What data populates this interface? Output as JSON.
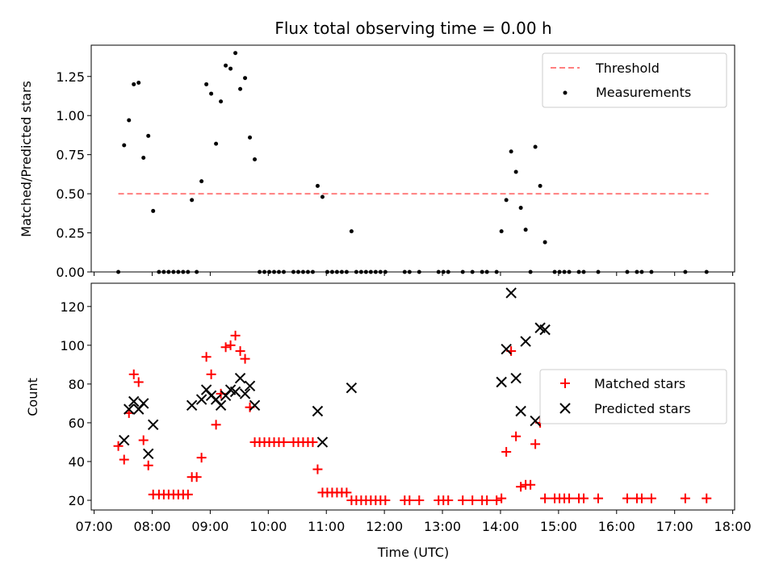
{
  "chart_data": [
    {
      "type": "scatter",
      "title": "Flux total observing time = 0.00 h",
      "xlabel": "",
      "ylabel": "Matched/Predicted stars",
      "xlim": [
        "07:00",
        "18:00"
      ],
      "ylim": [
        0,
        1.45
      ],
      "yticks": [
        0.0,
        0.25,
        0.5,
        0.75,
        1.0,
        1.25
      ],
      "ytick_labels": [
        "0.00",
        "0.25",
        "0.50",
        "0.75",
        "1.00",
        "1.25"
      ],
      "legend": {
        "position": "top-right",
        "entries": [
          "Threshold",
          "Measurements"
        ]
      },
      "threshold": {
        "name": "Threshold",
        "value": 0.5,
        "x_start": "07:25",
        "x_end": "17:35",
        "color": "#ff7f7f",
        "style": "dashed"
      },
      "series": [
        {
          "name": "Measurements",
          "color": "#000000",
          "marker": "dot",
          "points": [
            [
              "07:25",
              0.0
            ],
            [
              "07:31",
              0.81
            ],
            [
              "07:36",
              0.97
            ],
            [
              "07:41",
              1.2
            ],
            [
              "07:46",
              1.21
            ],
            [
              "07:51",
              0.73
            ],
            [
              "07:56",
              0.87
            ],
            [
              "08:01",
              0.39
            ],
            [
              "08:07",
              0.0
            ],
            [
              "08:12",
              0.0
            ],
            [
              "08:17",
              0.0
            ],
            [
              "08:22",
              0.0
            ],
            [
              "08:27",
              0.0
            ],
            [
              "08:32",
              0.0
            ],
            [
              "08:37",
              0.0
            ],
            [
              "08:41",
              0.46
            ],
            [
              "08:46",
              0.0
            ],
            [
              "08:51",
              0.58
            ],
            [
              "08:56",
              1.2
            ],
            [
              "09:01",
              1.14
            ],
            [
              "09:06",
              0.82
            ],
            [
              "09:11",
              1.09
            ],
            [
              "09:16",
              1.32
            ],
            [
              "09:21",
              1.3
            ],
            [
              "09:26",
              1.4
            ],
            [
              "09:31",
              1.17
            ],
            [
              "09:36",
              1.24
            ],
            [
              "09:41",
              0.86
            ],
            [
              "09:46",
              0.72
            ],
            [
              "09:51",
              0.0
            ],
            [
              "09:56",
              0.0
            ],
            [
              "10:01",
              0.0
            ],
            [
              "10:06",
              0.0
            ],
            [
              "10:11",
              0.0
            ],
            [
              "10:16",
              0.0
            ],
            [
              "10:26",
              0.0
            ],
            [
              "10:31",
              0.0
            ],
            [
              "10:36",
              0.0
            ],
            [
              "10:41",
              0.0
            ],
            [
              "10:46",
              0.0
            ],
            [
              "10:51",
              0.55
            ],
            [
              "10:56",
              0.48
            ],
            [
              "11:01",
              0.0
            ],
            [
              "11:06",
              0.0
            ],
            [
              "11:11",
              0.0
            ],
            [
              "11:16",
              0.0
            ],
            [
              "11:21",
              0.0
            ],
            [
              "11:26",
              0.26
            ],
            [
              "11:31",
              0.0
            ],
            [
              "11:36",
              0.0
            ],
            [
              "11:41",
              0.0
            ],
            [
              "11:46",
              0.0
            ],
            [
              "11:51",
              0.0
            ],
            [
              "11:56",
              0.0
            ],
            [
              "12:01",
              0.0
            ],
            [
              "12:21",
              0.0
            ],
            [
              "12:26",
              0.0
            ],
            [
              "12:36",
              0.0
            ],
            [
              "12:56",
              0.0
            ],
            [
              "13:01",
              0.0
            ],
            [
              "13:06",
              0.0
            ],
            [
              "13:21",
              0.0
            ],
            [
              "13:31",
              0.0
            ],
            [
              "13:41",
              0.0
            ],
            [
              "13:46",
              0.0
            ],
            [
              "13:56",
              0.0
            ],
            [
              "14:01",
              0.26
            ],
            [
              "14:06",
              0.46
            ],
            [
              "14:11",
              0.77
            ],
            [
              "14:16",
              0.64
            ],
            [
              "14:21",
              0.41
            ],
            [
              "14:26",
              0.27
            ],
            [
              "14:31",
              0.0
            ],
            [
              "14:36",
              0.8
            ],
            [
              "14:41",
              0.55
            ],
            [
              "14:46",
              0.19
            ],
            [
              "14:56",
              0.0
            ],
            [
              "15:01",
              0.0
            ],
            [
              "15:06",
              0.0
            ],
            [
              "15:11",
              0.0
            ],
            [
              "15:21",
              0.0
            ],
            [
              "15:26",
              0.0
            ],
            [
              "15:41",
              0.0
            ],
            [
              "16:11",
              0.0
            ],
            [
              "16:21",
              0.0
            ],
            [
              "16:26",
              0.0
            ],
            [
              "16:36",
              0.0
            ],
            [
              "17:11",
              0.0
            ],
            [
              "17:33",
              0.0
            ]
          ]
        }
      ]
    },
    {
      "type": "scatter",
      "title": "",
      "xlabel": "Time (UTC)",
      "ylabel": "Count",
      "xlim": [
        "07:00",
        "18:00"
      ],
      "ylim": [
        15,
        132
      ],
      "xticks": [
        "07:00",
        "08:00",
        "09:00",
        "10:00",
        "11:00",
        "12:00",
        "13:00",
        "14:00",
        "15:00",
        "16:00",
        "17:00",
        "18:00"
      ],
      "yticks": [
        20,
        40,
        60,
        80,
        100,
        120
      ],
      "legend": {
        "position": "center-right",
        "entries": [
          "Matched stars",
          "Predicted stars"
        ]
      },
      "series": [
        {
          "name": "Matched stars",
          "color": "#ff0000",
          "marker": "plus",
          "points": [
            [
              "07:25",
              48
            ],
            [
              "07:31",
              41
            ],
            [
              "07:36",
              65
            ],
            [
              "07:41",
              85
            ],
            [
              "07:46",
              81
            ],
            [
              "07:51",
              51
            ],
            [
              "07:56",
              38
            ],
            [
              "08:01",
              23
            ],
            [
              "08:07",
              23
            ],
            [
              "08:12",
              23
            ],
            [
              "08:17",
              23
            ],
            [
              "08:22",
              23
            ],
            [
              "08:27",
              23
            ],
            [
              "08:32",
              23
            ],
            [
              "08:37",
              23
            ],
            [
              "08:41",
              32
            ],
            [
              "08:46",
              32
            ],
            [
              "08:51",
              42
            ],
            [
              "08:56",
              94
            ],
            [
              "09:01",
              85
            ],
            [
              "09:06",
              59
            ],
            [
              "09:11",
              75
            ],
            [
              "09:16",
              99
            ],
            [
              "09:21",
              100
            ],
            [
              "09:26",
              105
            ],
            [
              "09:31",
              97
            ],
            [
              "09:36",
              93
            ],
            [
              "09:41",
              68
            ],
            [
              "09:46",
              50
            ],
            [
              "09:51",
              50
            ],
            [
              "09:56",
              50
            ],
            [
              "10:01",
              50
            ],
            [
              "10:06",
              50
            ],
            [
              "10:11",
              50
            ],
            [
              "10:16",
              50
            ],
            [
              "10:26",
              50
            ],
            [
              "10:31",
              50
            ],
            [
              "10:36",
              50
            ],
            [
              "10:41",
              50
            ],
            [
              "10:46",
              50
            ],
            [
              "10:51",
              36
            ],
            [
              "10:56",
              24
            ],
            [
              "11:01",
              24
            ],
            [
              "11:06",
              24
            ],
            [
              "11:11",
              24
            ],
            [
              "11:16",
              24
            ],
            [
              "11:21",
              24
            ],
            [
              "11:26",
              20
            ],
            [
              "11:31",
              20
            ],
            [
              "11:36",
              20
            ],
            [
              "11:41",
              20
            ],
            [
              "11:46",
              20
            ],
            [
              "11:51",
              20
            ],
            [
              "11:56",
              20
            ],
            [
              "12:01",
              20
            ],
            [
              "12:21",
              20
            ],
            [
              "12:26",
              20
            ],
            [
              "12:36",
              20
            ],
            [
              "12:56",
              20
            ],
            [
              "13:01",
              20
            ],
            [
              "13:06",
              20
            ],
            [
              "13:21",
              20
            ],
            [
              "13:31",
              20
            ],
            [
              "13:41",
              20
            ],
            [
              "13:46",
              20
            ],
            [
              "13:56",
              20
            ],
            [
              "14:01",
              21
            ],
            [
              "14:06",
              45
            ],
            [
              "14:11",
              97
            ],
            [
              "14:16",
              53
            ],
            [
              "14:21",
              27
            ],
            [
              "14:26",
              28
            ],
            [
              "14:31",
              28
            ],
            [
              "14:36",
              49
            ],
            [
              "14:41",
              60
            ],
            [
              "14:46",
              21
            ],
            [
              "14:56",
              21
            ],
            [
              "15:01",
              21
            ],
            [
              "15:06",
              21
            ],
            [
              "15:11",
              21
            ],
            [
              "15:21",
              21
            ],
            [
              "15:26",
              21
            ],
            [
              "15:41",
              21
            ],
            [
              "16:11",
              21
            ],
            [
              "16:21",
              21
            ],
            [
              "16:26",
              21
            ],
            [
              "16:36",
              21
            ],
            [
              "17:11",
              21
            ],
            [
              "17:33",
              21
            ]
          ]
        },
        {
          "name": "Predicted stars",
          "color": "#000000",
          "marker": "x",
          "points": [
            [
              "07:31",
              51
            ],
            [
              "07:36",
              67
            ],
            [
              "07:41",
              71
            ],
            [
              "07:46",
              67
            ],
            [
              "07:51",
              70
            ],
            [
              "07:56",
              44
            ],
            [
              "08:01",
              59
            ],
            [
              "08:41",
              69
            ],
            [
              "08:51",
              72
            ],
            [
              "08:56",
              77
            ],
            [
              "09:01",
              74
            ],
            [
              "09:06",
              72
            ],
            [
              "09:11",
              69
            ],
            [
              "09:16",
              74
            ],
            [
              "09:21",
              77
            ],
            [
              "09:26",
              76
            ],
            [
              "09:31",
              83
            ],
            [
              "09:36",
              75
            ],
            [
              "09:41",
              79
            ],
            [
              "09:46",
              69
            ],
            [
              "10:51",
              66
            ],
            [
              "10:56",
              50
            ],
            [
              "11:26",
              78
            ],
            [
              "14:01",
              81
            ],
            [
              "14:06",
              98
            ],
            [
              "14:11",
              127
            ],
            [
              "14:16",
              83
            ],
            [
              "14:21",
              66
            ],
            [
              "14:26",
              102
            ],
            [
              "14:36",
              61
            ],
            [
              "14:41",
              109
            ],
            [
              "14:46",
              108
            ]
          ]
        }
      ]
    }
  ]
}
